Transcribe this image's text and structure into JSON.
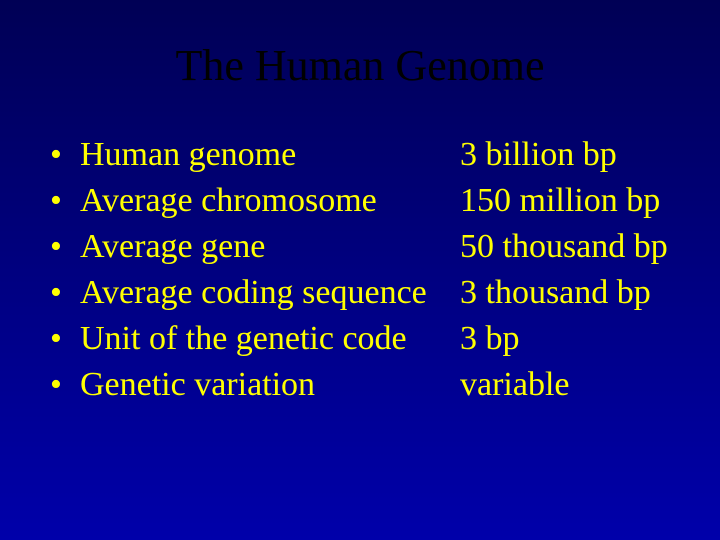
{
  "slide": {
    "title": "The Human Genome",
    "background_gradient_top": "#000055",
    "background_gradient_bottom": "#0000aa",
    "title_color": "#000000",
    "text_color": "#ffff00",
    "title_fontsize": 44,
    "body_fontsize": 34,
    "font_family": "Times New Roman",
    "bullet_char": "•",
    "items": [
      {
        "label": "Human genome",
        "value": "3 billion bp"
      },
      {
        "label": "Average chromosome",
        "value": "150 million bp"
      },
      {
        "label": "Average gene",
        "value": "50 thousand bp"
      },
      {
        "label": "Average coding sequence",
        "value": "3 thousand bp"
      },
      {
        "label": "Unit of the genetic code",
        "value": "3 bp"
      },
      {
        "label": "Genetic variation",
        "value": "variable"
      }
    ]
  }
}
